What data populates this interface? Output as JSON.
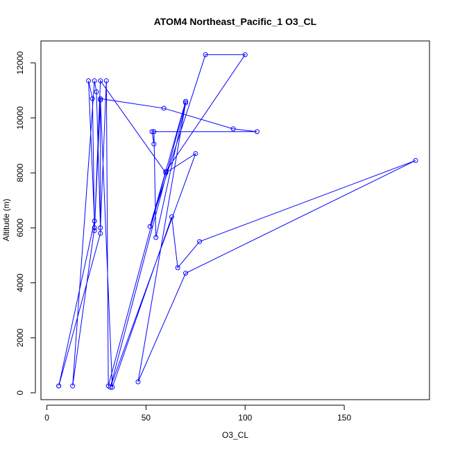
{
  "chart_data": {
    "type": "line",
    "title": "ATOM4 Northeast_Pacific_1 O3_CL",
    "xlabel": "O3_CL",
    "ylabel": "Altitude (m)",
    "xlim": [
      -3,
      193
    ],
    "ylim": [
      -250,
      12800
    ],
    "x_ticks": [
      0,
      50,
      100,
      150
    ],
    "x_tick_labels": [
      "0",
      "50",
      "100",
      "150"
    ],
    "y_ticks": [
      0,
      2000,
      4000,
      6000,
      8000,
      10000,
      12000
    ],
    "y_tick_labels": [
      "0",
      "2000",
      "4000",
      "6000",
      "8000",
      "10000",
      "12000"
    ],
    "grid": false,
    "series": [
      {
        "color": "#0000ff",
        "points": [
          {
            "x": 6,
            "y": 250
          },
          {
            "x": 24,
            "y": 6250
          },
          {
            "x": 21,
            "y": 11350
          },
          {
            "x": 23,
            "y": 10700
          },
          {
            "x": 24,
            "y": 6000
          },
          {
            "x": 13,
            "y": 250
          },
          {
            "x": 24,
            "y": 11350
          },
          {
            "x": 25,
            "y": 10950
          },
          {
            "x": 27,
            "y": 6000
          },
          {
            "x": 30,
            "y": 11350
          },
          {
            "x": 31,
            "y": 250
          },
          {
            "x": 60,
            "y": 8050
          },
          {
            "x": 100,
            "y": 12300
          },
          {
            "x": 80,
            "y": 12300
          },
          {
            "x": 52,
            "y": 6050
          },
          {
            "x": 70,
            "y": 10600
          },
          {
            "x": 32,
            "y": 200
          },
          {
            "x": 75,
            "y": 8700
          },
          {
            "x": 60,
            "y": 8000
          },
          {
            "x": 27,
            "y": 11350
          },
          {
            "x": 24,
            "y": 5900
          },
          {
            "x": 27,
            "y": 10700
          },
          {
            "x": 59,
            "y": 10350
          },
          {
            "x": 94,
            "y": 9600
          },
          {
            "x": 106,
            "y": 9500
          },
          {
            "x": 53,
            "y": 9500
          },
          {
            "x": 54,
            "y": 9050
          },
          {
            "x": 54,
            "y": 9500
          },
          {
            "x": 55,
            "y": 5650
          },
          {
            "x": 70,
            "y": 10550
          },
          {
            "x": 46,
            "y": 400
          },
          {
            "x": 70,
            "y": 4350
          },
          {
            "x": 186,
            "y": 8450
          },
          {
            "x": 77,
            "y": 5500
          },
          {
            "x": 66,
            "y": 4550
          },
          {
            "x": 63,
            "y": 6400
          },
          {
            "x": 33,
            "y": 200
          },
          {
            "x": 27,
            "y": 10650
          },
          {
            "x": 27,
            "y": 5800
          },
          {
            "x": 6,
            "y": 250
          }
        ]
      }
    ]
  }
}
